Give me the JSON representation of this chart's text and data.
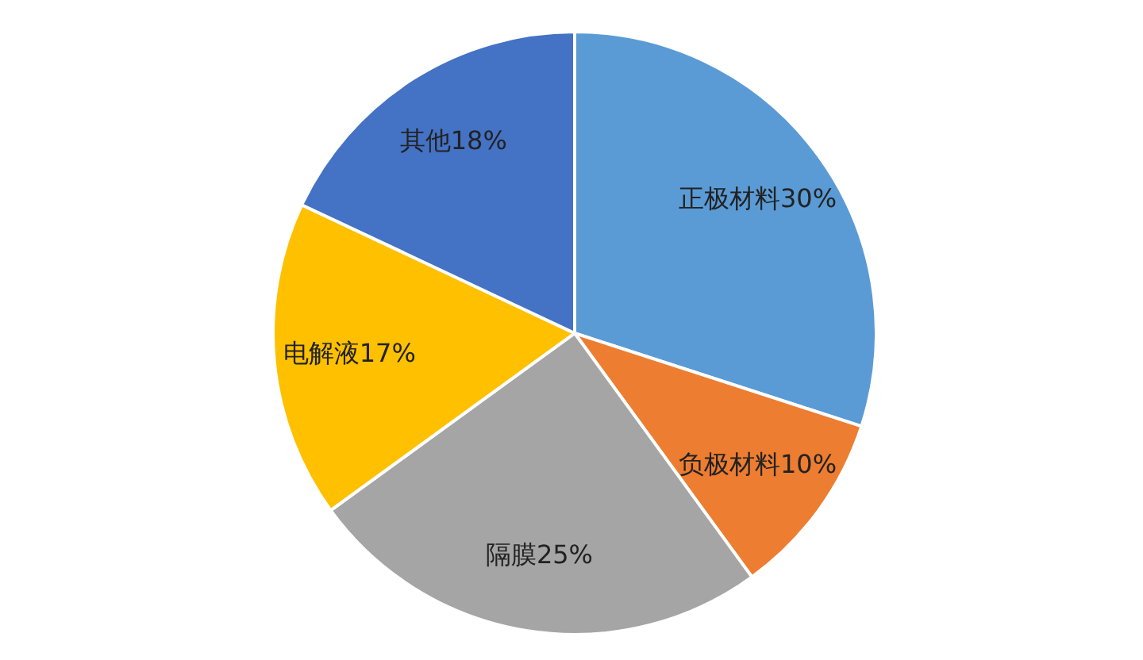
{
  "chart_data": {
    "type": "pie",
    "categories": [
      "正极材料",
      "负极材料",
      "隔膜",
      "电解液",
      "其他"
    ],
    "values": [
      30,
      10,
      25,
      17,
      18
    ],
    "value_labels": [
      "30%",
      "10%",
      "25%",
      "17%",
      "18%"
    ],
    "colors": [
      "#5b9bd5",
      "#ed7d31",
      "#a5a5a5",
      "#ffc000",
      "#4472c4"
    ],
    "legend": false
  }
}
